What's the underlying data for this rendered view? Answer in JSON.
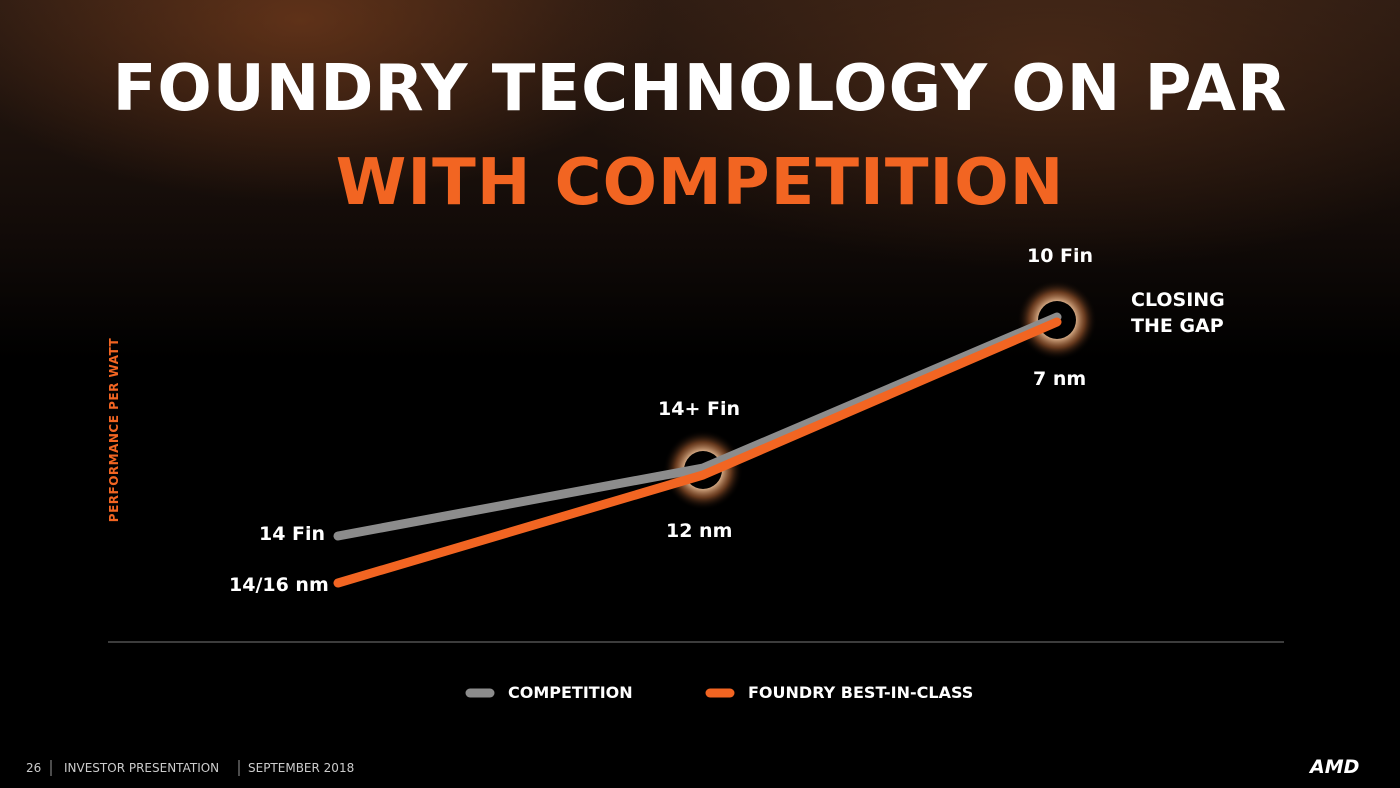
{
  "title": {
    "line1": "FOUNDRY TECHNOLOGY ON PAR",
    "line2": "WITH COMPETITION"
  },
  "y_axis_label": "PERFORMANCE PER WATT",
  "points": [
    {
      "competition": "14 Fin",
      "foundry": "14/16 nm"
    },
    {
      "competition": "14+ Fin",
      "foundry": "12 nm"
    },
    {
      "competition": "10 Fin",
      "foundry": "7 nm"
    }
  ],
  "annotation": [
    "CLOSING",
    "THE GAP"
  ],
  "legend": [
    "COMPETITION",
    "FOUNDRY BEST-IN-CLASS"
  ],
  "footer": [
    "26",
    "INVESTOR PRESENTATION",
    "SEPTEMBER 2018"
  ],
  "logo": "AMD"
}
